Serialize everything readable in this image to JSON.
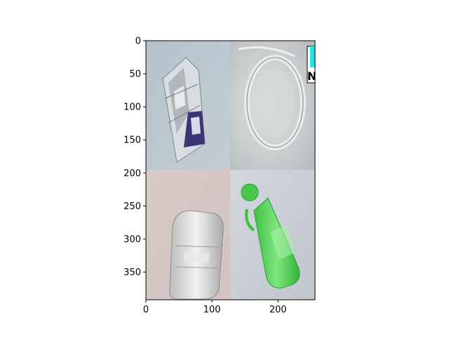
{
  "chart_data": {
    "type": "image",
    "xlim": [
      0,
      256
    ],
    "ylim": [
      392,
      0
    ],
    "x_ticks": [
      0,
      100,
      200
    ],
    "y_ticks": [
      0,
      50,
      100,
      150,
      200,
      250,
      300,
      350
    ],
    "grid": false,
    "title": "",
    "xlabel": "",
    "ylabel": "",
    "panels": [
      {
        "name": "crumpled foil and plastic snack wrapper",
        "x": [
          0,
          128
        ],
        "y": [
          0,
          196
        ],
        "background": "#b9c6cd"
      },
      {
        "name": "close-up of clear plastic bottle base",
        "x": [
          128,
          256
        ],
        "y": [
          0,
          196
        ],
        "background": "#c8cccd"
      },
      {
        "name": "clear plastic food container",
        "x": [
          0,
          128
        ],
        "y": [
          196,
          392
        ],
        "background": "#d9cbc9"
      },
      {
        "name": "green plastic bottle with cap",
        "x": [
          128,
          256
        ],
        "y": [
          196,
          392
        ],
        "background": "#c9cdd4"
      }
    ]
  }
}
